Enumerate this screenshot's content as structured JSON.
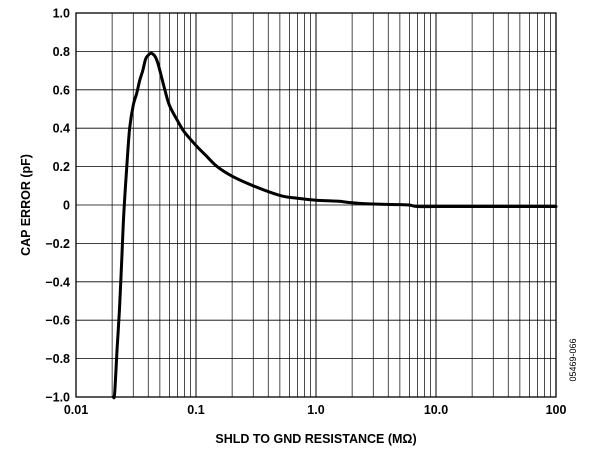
{
  "chart_data": {
    "type": "line",
    "title": "",
    "xlabel": "SHLD TO GND RESISTANCE (MΩ)",
    "ylabel": "CAP ERROR (pF)",
    "xscale": "log",
    "xlim": [
      0.01,
      100
    ],
    "ylim": [
      -1.0,
      1.0
    ],
    "grid": true,
    "legend": "none",
    "x_tick_labels": [
      "0.01",
      "0.1",
      "1.0",
      "10.0",
      "100"
    ],
    "x_tick_values": [
      0.01,
      0.1,
      1,
      10,
      100
    ],
    "y_tick_labels": [
      "1.0",
      "0.8",
      "0.6",
      "0.4",
      "0.2",
      "0",
      "−0.2",
      "−0.4",
      "−0.6",
      "−0.8",
      "−1.0"
    ],
    "y_tick_values": [
      1.0,
      0.8,
      0.6,
      0.4,
      0.2,
      0,
      -0.2,
      -0.4,
      -0.6,
      -0.8,
      -1.0
    ],
    "figure_id": "05469-066",
    "line_color": "#000000",
    "series": [
      {
        "x": [
          0.0205,
          0.021,
          0.022,
          0.023,
          0.024,
          0.025,
          0.0265,
          0.028,
          0.03,
          0.032,
          0.034,
          0.036,
          0.038,
          0.04,
          0.042,
          0.044,
          0.046,
          0.048,
          0.05,
          0.055,
          0.06,
          0.07,
          0.08,
          0.1,
          0.12,
          0.15,
          0.2,
          0.3,
          0.5,
          0.7,
          1.0,
          1.5,
          2.0,
          3.0,
          5.0,
          6.0,
          7.0,
          10.0,
          20.0,
          50.0,
          100
        ],
        "y": [
          -1.0,
          -0.98,
          -0.75,
          -0.55,
          -0.3,
          -0.05,
          0.2,
          0.4,
          0.52,
          0.58,
          0.65,
          0.7,
          0.76,
          0.78,
          0.79,
          0.785,
          0.77,
          0.74,
          0.7,
          0.6,
          0.52,
          0.44,
          0.38,
          0.31,
          0.26,
          0.2,
          0.15,
          0.1,
          0.05,
          0.035,
          0.025,
          0.02,
          0.012,
          0.005,
          0.002,
          0.0,
          -0.008,
          -0.008,
          -0.008,
          -0.008,
          -0.008
        ]
      }
    ]
  }
}
